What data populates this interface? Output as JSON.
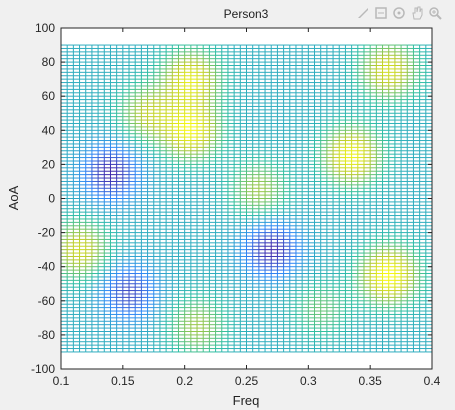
{
  "toolbar": {
    "icons": [
      "brush-icon",
      "datatip-icon",
      "rotate-icon",
      "pan-icon",
      "zoom-in-icon"
    ]
  },
  "chart_data": {
    "type": "heatmap",
    "title": "Person3",
    "xlabel": "Freq",
    "ylabel": "AoA",
    "xlim": [
      0.1,
      0.4
    ],
    "ylim": [
      -100,
      100
    ],
    "x_ticks": [
      "0.1",
      "0.15",
      "0.2",
      "0.25",
      "0.3",
      "0.35",
      "0.4"
    ],
    "y_ticks": [
      "100",
      "80",
      "60",
      "40",
      "20",
      "0",
      "-20",
      "-40",
      "-60",
      "-80",
      "-100"
    ],
    "mesh_x_range": [
      0.1,
      0.4
    ],
    "mesh_y_range": [
      -90,
      90
    ],
    "colormap": [
      "#3e26a8",
      "#2e87f7",
      "#2ebea3",
      "#b5c92f",
      "#f9fb0e"
    ],
    "grid": false,
    "blobs": [
      {
        "x": 0.14,
        "y": 15,
        "value": 0.0
      },
      {
        "x": 0.155,
        "y": -55,
        "value": 0.08
      },
      {
        "x": 0.27,
        "y": -30,
        "value": 0.0
      },
      {
        "x": 0.205,
        "y": 40,
        "value": 0.95
      },
      {
        "x": 0.205,
        "y": 70,
        "value": 0.9
      },
      {
        "x": 0.17,
        "y": 50,
        "value": 0.75
      },
      {
        "x": 0.335,
        "y": 25,
        "value": 0.95
      },
      {
        "x": 0.365,
        "y": -45,
        "value": 1.0
      },
      {
        "x": 0.365,
        "y": 75,
        "value": 0.85
      },
      {
        "x": 0.115,
        "y": -30,
        "value": 0.82
      },
      {
        "x": 0.26,
        "y": 5,
        "value": 0.7
      },
      {
        "x": 0.21,
        "y": -75,
        "value": 0.7
      },
      {
        "x": 0.31,
        "y": -65,
        "value": 0.6
      }
    ]
  }
}
